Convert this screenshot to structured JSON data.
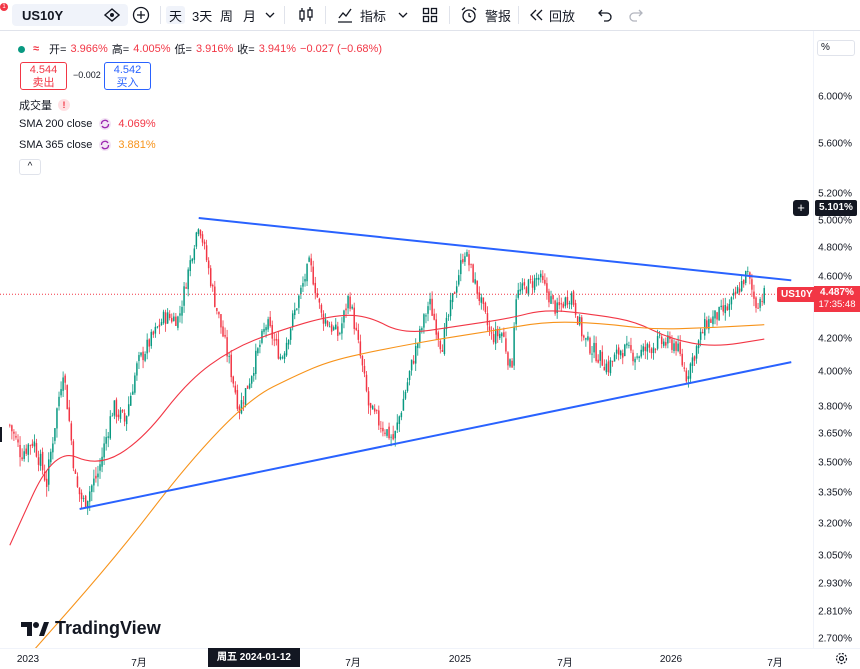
{
  "toolbar": {
    "symbol": "US10Y",
    "add_icon": "plus-circle-icon",
    "timeframes": [
      "天",
      "3天",
      "周",
      "月"
    ],
    "active_timeframe": "天",
    "indicators_label": "指标",
    "alert_label": "警报",
    "replay_label": "回放",
    "notification_count": "1"
  },
  "legend": {
    "open_label": "开=",
    "open": "3.966%",
    "high_label": "高=",
    "high": "4.005%",
    "low_label": "低=",
    "low": "3.916%",
    "close_label": "收=",
    "close": "3.941%",
    "change": "−0.027 (−0.68%)",
    "sell_price": "4.544",
    "sell_label": "卖出",
    "buy_price": "4.542",
    "buy_label": "买入",
    "spread": "−0.002",
    "volume_label": "成交量",
    "sma200_label": "SMA 200 close",
    "sma200_value": "4.069%",
    "sma365_label": "SMA 365 close",
    "sma365_value": "3.881%",
    "collapse_symbol": "^"
  },
  "price_axis": {
    "scale_mode": "%",
    "labels": [
      "6.000%",
      "5.600%",
      "5.200%",
      "5.000%",
      "4.800%",
      "4.600%",
      "4.200%",
      "4.000%",
      "3.800%",
      "3.650%",
      "3.500%",
      "3.350%",
      "3.200%",
      "3.050%",
      "2.930%",
      "2.810%",
      "2.700%"
    ],
    "current_price": "4.487%",
    "countdown": "17:35:48",
    "symbol_tag": "US10Y",
    "crosshair_price": "5.101%"
  },
  "time_axis": {
    "labels": [
      "2023",
      "7月",
      "周五 2024-01-12",
      "7月",
      "2025",
      "7月",
      "2026",
      "7月"
    ],
    "crosshair_date": "周五 2024-01-12"
  },
  "brand": {
    "name": "TradingView"
  },
  "colors": {
    "up": "#089981",
    "down": "#f23645",
    "sma200": "#f23645",
    "sma365": "#f7931a",
    "trendline": "#2962ff",
    "price_line": "#f23645"
  },
  "chart_data": {
    "type": "candlestick",
    "symbol": "US10Y",
    "x_range": [
      "2022-12",
      "2026-07"
    ],
    "y_scale": "log",
    "ylim": [
      2.62,
      6.4
    ],
    "current_close": 4.487,
    "price_path": [
      [
        "2022-12-01",
        3.7
      ],
      [
        "2022-12-20",
        3.55
      ],
      [
        "2023-01-10",
        3.62
      ],
      [
        "2023-02-02",
        3.4
      ],
      [
        "2023-03-02",
        4.02
      ],
      [
        "2023-03-24",
        3.38
      ],
      [
        "2023-04-06",
        3.3
      ],
      [
        "2023-05-01",
        3.45
      ],
      [
        "2023-05-26",
        3.8
      ],
      [
        "2023-06-15",
        3.72
      ],
      [
        "2023-07-07",
        4.05
      ],
      [
        "2023-08-21",
        4.34
      ],
      [
        "2023-09-15",
        4.33
      ],
      [
        "2023-10-19",
        4.99
      ],
      [
        "2023-11-15",
        4.45
      ],
      [
        "2023-12-27",
        3.79
      ],
      [
        "2024-01-12",
        3.94
      ],
      [
        "2024-02-12",
        4.3
      ],
      [
        "2024-03-08",
        4.08
      ],
      [
        "2024-04-25",
        4.7
      ],
      [
        "2024-05-15",
        4.35
      ],
      [
        "2024-06-14",
        4.22
      ],
      [
        "2024-07-01",
        4.48
      ],
      [
        "2024-08-05",
        3.78
      ],
      [
        "2024-09-16",
        3.62
      ],
      [
        "2024-10-15",
        4.03
      ],
      [
        "2024-11-15",
        4.44
      ],
      [
        "2024-12-06",
        4.15
      ],
      [
        "2025-01-14",
        4.79
      ],
      [
        "2025-02-28",
        4.21
      ],
      [
        "2025-03-20",
        4.24
      ],
      [
        "2025-04-04",
        3.99
      ],
      [
        "2025-04-11",
        4.48
      ],
      [
        "2025-05-21",
        4.6
      ],
      [
        "2025-06-20",
        4.38
      ],
      [
        "2025-07-15",
        4.49
      ],
      [
        "2025-08-05",
        4.2
      ],
      [
        "2025-09-16",
        4.03
      ],
      [
        "2025-10-08",
        4.14
      ],
      [
        "2025-11-03",
        4.1
      ],
      [
        "2025-12-10",
        4.18
      ],
      [
        "2026-01-09",
        4.17
      ],
      [
        "2026-01-27",
        3.98
      ],
      [
        "2026-03-02",
        4.3
      ],
      [
        "2026-04-10",
        4.4
      ],
      [
        "2026-05-11",
        4.63
      ],
      [
        "2026-05-25",
        4.42
      ],
      [
        "2026-06-09",
        4.487
      ]
    ],
    "sma200": [
      [
        "2022-12-01",
        3.1
      ],
      [
        "2023-02-15",
        3.58
      ],
      [
        "2023-05-01",
        3.48
      ],
      [
        "2023-07-15",
        3.62
      ],
      [
        "2023-10-01",
        3.95
      ],
      [
        "2023-12-15",
        4.14
      ],
      [
        "2024-03-01",
        4.25
      ],
      [
        "2024-06-01",
        4.35
      ],
      [
        "2024-08-01",
        4.35
      ],
      [
        "2024-10-01",
        4.23
      ],
      [
        "2025-01-01",
        4.28
      ],
      [
        "2025-04-01",
        4.33
      ],
      [
        "2025-06-01",
        4.39
      ],
      [
        "2025-09-01",
        4.35
      ],
      [
        "2025-11-01",
        4.31
      ],
      [
        "2026-01-01",
        4.2
      ],
      [
        "2026-03-15",
        4.15
      ],
      [
        "2026-06-09",
        4.2
      ]
    ],
    "sma365": [
      [
        "2022-12-28",
        2.62
      ],
      [
        "2023-06-01",
        3.05
      ],
      [
        "2023-10-01",
        3.5
      ],
      [
        "2024-01-15",
        3.85
      ],
      [
        "2024-04-01",
        3.98
      ],
      [
        "2024-06-01",
        4.07
      ],
      [
        "2024-09-01",
        4.14
      ],
      [
        "2024-12-01",
        4.2
      ],
      [
        "2025-03-01",
        4.25
      ],
      [
        "2025-06-01",
        4.31
      ],
      [
        "2025-09-01",
        4.3
      ],
      [
        "2025-12-01",
        4.26
      ],
      [
        "2026-03-01",
        4.27
      ],
      [
        "2026-06-09",
        4.29
      ]
    ],
    "trendlines": [
      {
        "name": "upper",
        "points": [
          [
            "2023-10-19",
            5.02
          ],
          [
            "2026-07-25",
            4.58
          ]
        ]
      },
      {
        "name": "lower",
        "points": [
          [
            "2023-03-30",
            3.27
          ],
          [
            "2026-07-25",
            4.06
          ]
        ]
      }
    ],
    "grid": false,
    "legend_position": "top-left"
  }
}
